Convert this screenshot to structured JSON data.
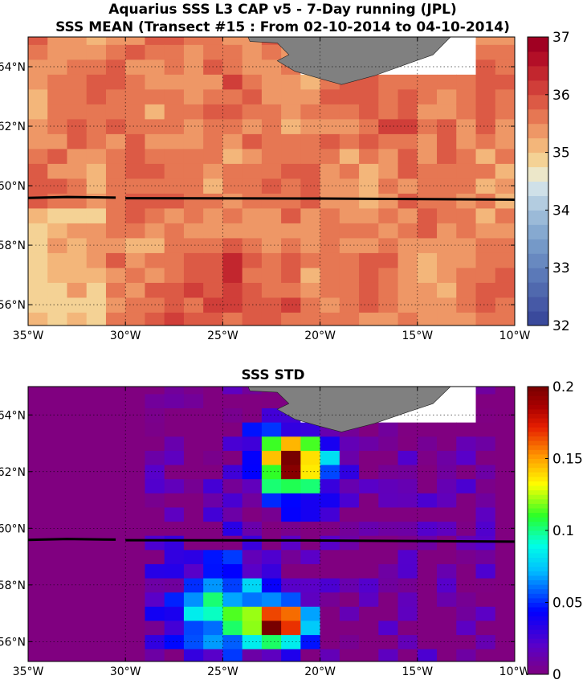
{
  "chart_data": [
    {
      "type": "heatmap",
      "title": "Aquarius SSS L3 CAP v5 - 7-Day running (JPL)",
      "subtitle": "SSS MEAN (Transect #15 : From 02-10-2014 to 04-10-2014)",
      "x_ticks": [
        "35°W",
        "30°W",
        "25°W",
        "20°W",
        "15°W",
        "10°W"
      ],
      "y_ticks": [
        "56°N",
        "58°N",
        "60°N",
        "62°N",
        "64°N"
      ],
      "xlim": [
        -35,
        -10
      ],
      "ylim": [
        55.3,
        65
      ],
      "grid": true,
      "colorbar": {
        "range": [
          32,
          37
        ],
        "ticks": [
          "32",
          "33",
          "34",
          "35",
          "36",
          "37"
        ]
      },
      "transect_lat_approx": 59.55,
      "land_color": "#808080"
    },
    {
      "type": "heatmap",
      "title": "SSS STD",
      "x_ticks": [
        "35°W",
        "30°W",
        "25°W",
        "20°W",
        "15°W",
        "10°W"
      ],
      "y_ticks": [
        "56°N",
        "58°N",
        "60°N",
        "62°N",
        "64°N"
      ],
      "xlim": [
        -35,
        -10
      ],
      "ylim": [
        55.3,
        65
      ],
      "grid": true,
      "colorbar": {
        "range": [
          0,
          0.2
        ],
        "ticks": [
          "0",
          "0.05",
          "0.1",
          "0.15",
          "0.2"
        ]
      },
      "transect_lat_approx": 59.55,
      "land_color": "#808080"
    }
  ]
}
